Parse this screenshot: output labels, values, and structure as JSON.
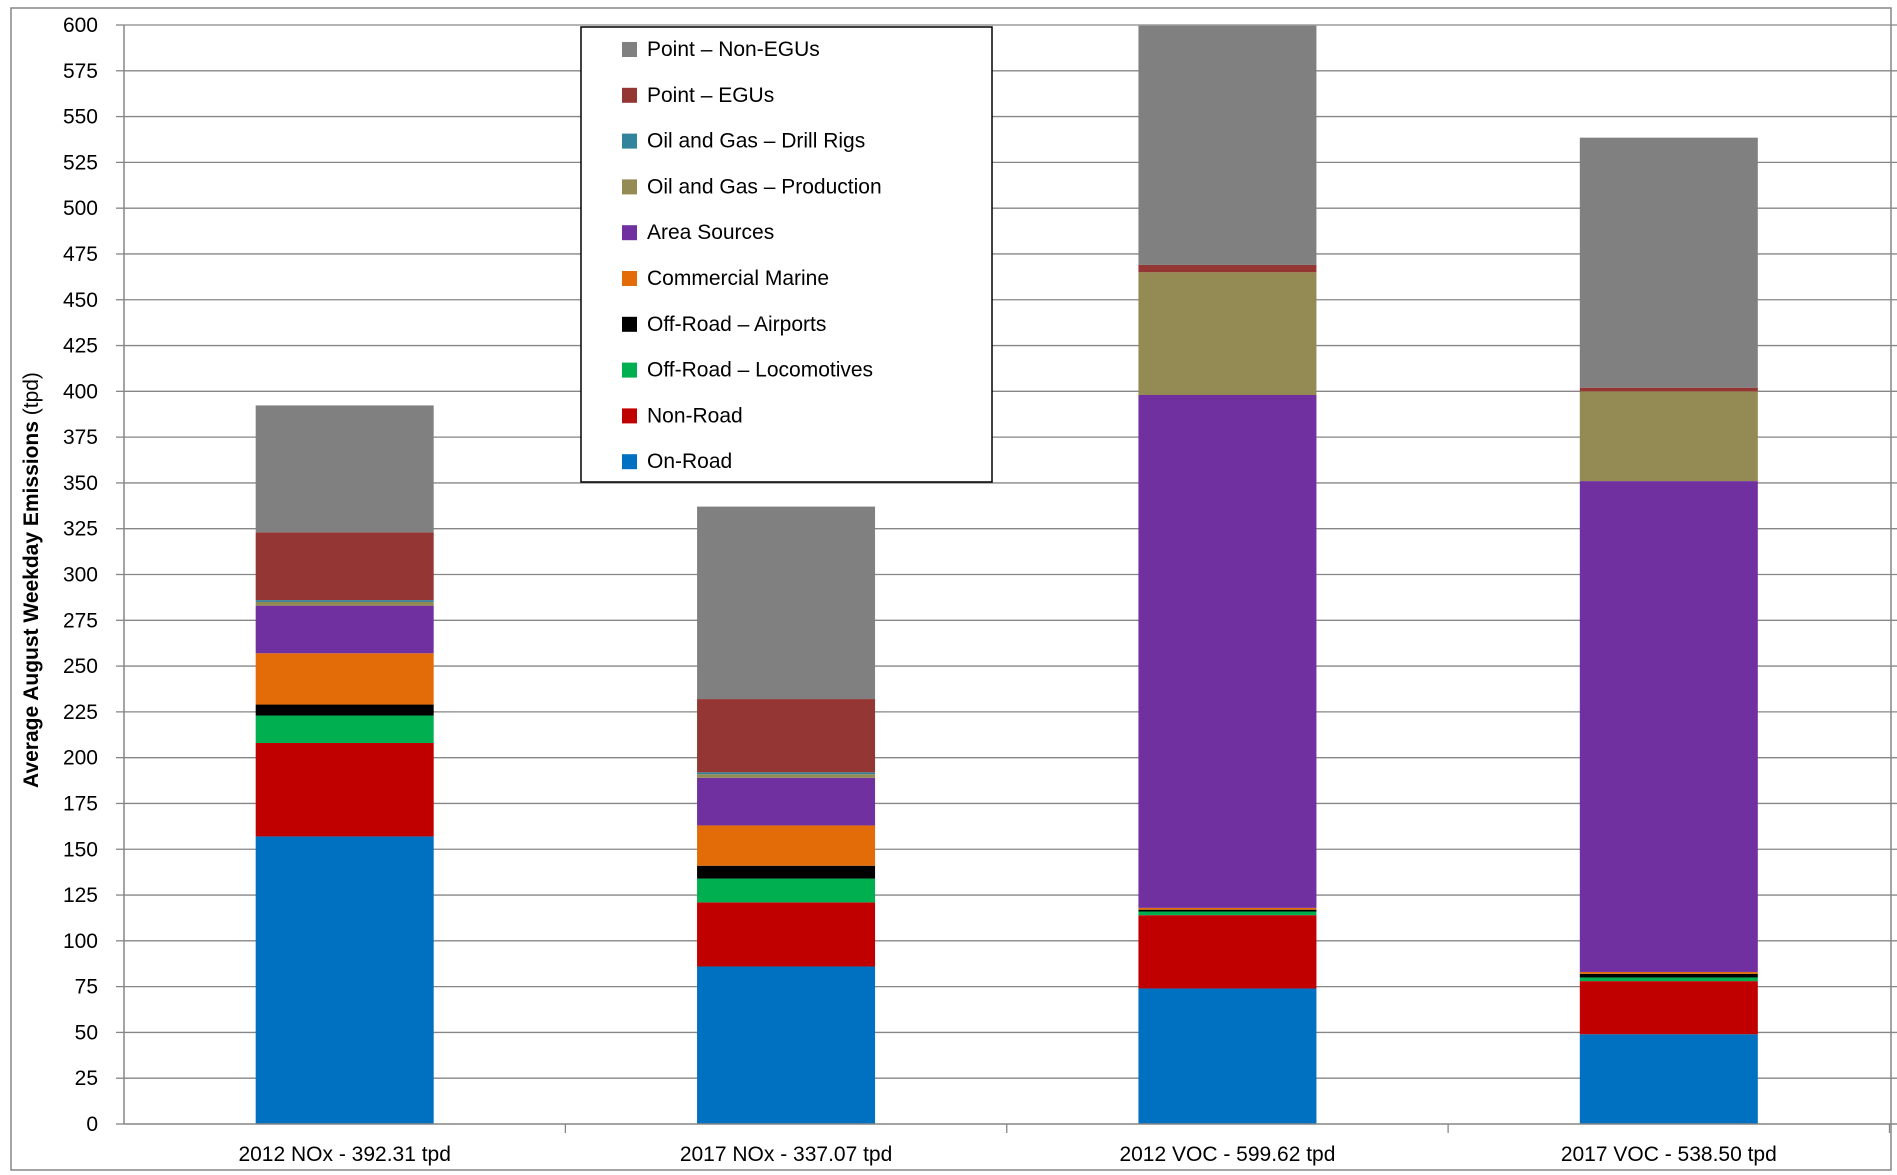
{
  "chart_data": {
    "type": "bar",
    "stacked": true,
    "title": "",
    "xlabel": "",
    "ylabel": "Average August Weekday Emissions",
    "ylabel_unit": "(tpd)",
    "ylim": [
      0,
      600
    ],
    "ytick_step": 25,
    "grid": true,
    "legend_position": "top-center",
    "categories": [
      "2012 NOx - 392.31 tpd",
      "2017 NOx - 337.07 tpd",
      "2012 VOC - 599.62 tpd",
      "2017 VOC - 538.50 tpd"
    ],
    "series": [
      {
        "name": "On-Road",
        "color": "#0070C0",
        "values": [
          157,
          86,
          74,
          49
        ]
      },
      {
        "name": "Non-Road",
        "color": "#C00000",
        "values": [
          51,
          35,
          40,
          29
        ]
      },
      {
        "name": "Off-Road – Locomotives",
        "color": "#00B050",
        "values": [
          15,
          13,
          2,
          2
        ]
      },
      {
        "name": "Off-Road – Airports",
        "color": "#000000",
        "values": [
          6,
          7,
          1,
          2
        ]
      },
      {
        "name": "Commercial Marine",
        "color": "#E36C09",
        "values": [
          28,
          22,
          1,
          1
        ]
      },
      {
        "name": "Area Sources",
        "color": "#7030A0",
        "values": [
          26,
          26,
          280,
          268
        ]
      },
      {
        "name": "Oil and Gas – Production",
        "color": "#948A54",
        "values": [
          2,
          2,
          67,
          49
        ]
      },
      {
        "name": "Oil and Gas – Drill Rigs",
        "color": "#31849B",
        "values": [
          1,
          1,
          0,
          0
        ]
      },
      {
        "name": "Point – EGUs",
        "color": "#943634",
        "values": [
          37,
          40,
          4,
          2
        ]
      },
      {
        "name": "Point – Non-EGUs",
        "color": "#808080",
        "values": [
          69.31,
          105.07,
          130.62,
          136.5
        ]
      }
    ],
    "legend_order": [
      "Point – Non-EGUs",
      "Point – EGUs",
      "Oil and Gas – Drill Rigs",
      "Oil and Gas – Production",
      "Area Sources",
      "Commercial Marine",
      "Off-Road – Airports",
      "Off-Road – Locomotives",
      "Non-Road",
      "On-Road"
    ]
  }
}
